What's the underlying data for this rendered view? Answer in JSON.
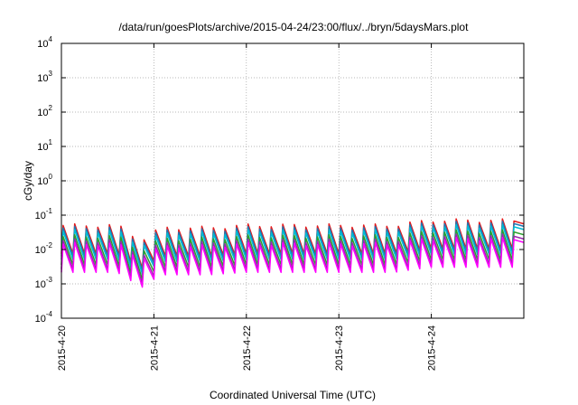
{
  "chart_data": {
    "type": "line",
    "title": "/data/run/goesPlots/archive/2015-04-24/23:00/flux/../bryn/5daysMars.plot",
    "xlabel": "Coordinated Universal Time (UTC)",
    "ylabel": "cGy/day",
    "yscale": "log",
    "ylim": [
      0.0001,
      10000
    ],
    "xlim": [
      0,
      5
    ],
    "grid": true,
    "legend": "none",
    "x_ticks": [
      {
        "value": 0,
        "label": "2015-4-20"
      },
      {
        "value": 1,
        "label": "2015-4-21"
      },
      {
        "value": 2,
        "label": "2015-4-22"
      },
      {
        "value": 3,
        "label": "2015-4-23"
      },
      {
        "value": 4,
        "label": "2015-4-24"
      }
    ],
    "y_ticks": [
      {
        "value": 0.0001,
        "base": "10",
        "exp": "-4"
      },
      {
        "value": 0.001,
        "base": "10",
        "exp": "-3"
      },
      {
        "value": 0.01,
        "base": "10",
        "exp": "-2"
      },
      {
        "value": 0.1,
        "base": "10",
        "exp": "-1"
      },
      {
        "value": 1,
        "base": "10",
        "exp": "0"
      },
      {
        "value": 10,
        "base": "10",
        "exp": "1"
      },
      {
        "value": 100,
        "base": "10",
        "exp": "2"
      },
      {
        "value": 1000,
        "base": "10",
        "exp": "3"
      },
      {
        "value": 10000,
        "base": "10",
        "exp": "4"
      }
    ],
    "pattern": {
      "cycles_per_day": 8,
      "peak": 0.04,
      "trough": 0.006,
      "day_factors": [
        1.0,
        0.85,
        1.0,
        1.0,
        1.4
      ],
      "dip": {
        "center": 0.85,
        "width": 0.25,
        "factor": 0.35
      }
    },
    "series": [
      {
        "color": "#e41a1c",
        "factor": 1.25
      },
      {
        "color": "#1f77b4",
        "factor": 1.05
      },
      {
        "color": "#00bcd4",
        "factor": 0.85
      },
      {
        "color": "#2ca02c",
        "factor": 0.6
      },
      {
        "color": "#9c27b0",
        "factor": 0.45
      },
      {
        "color": "#ff00ff",
        "factor": 0.36
      }
    ]
  }
}
